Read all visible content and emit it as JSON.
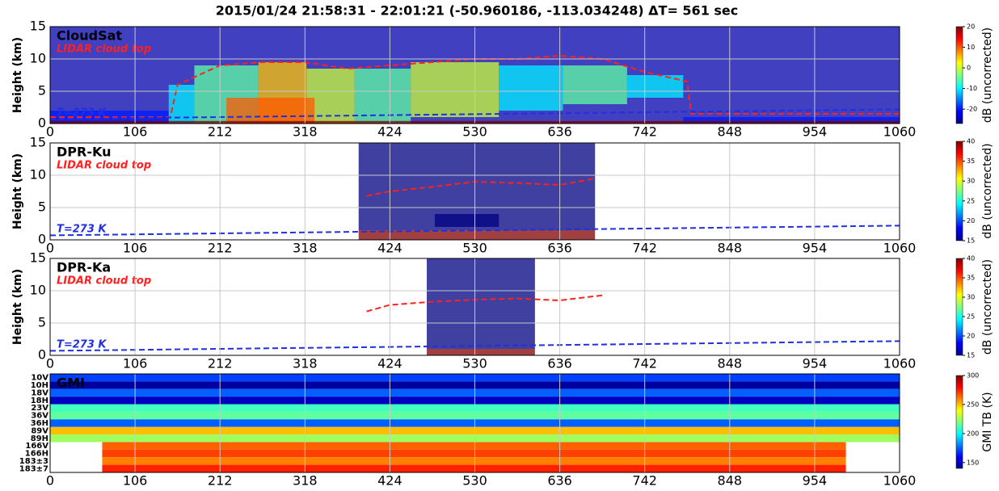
{
  "chart_data": [
    {
      "type": "heatmap",
      "title": "2015/01/24 21:58:31 - 22:01:21   (-50.960186, -113.034248)  ΔT= 561 sec",
      "label": "CloudSat",
      "ylabel": "Height (km)",
      "xlim": [
        0,
        1060
      ],
      "xticks": [
        0,
        106,
        212,
        318,
        424,
        530,
        636,
        742,
        848,
        954,
        1060
      ],
      "ylim": [
        0,
        15
      ],
      "yticks": [
        0,
        5,
        10,
        15
      ],
      "cells": [
        {
          "x": [
            0,
            1060
          ],
          "y": [
            0,
            15
          ],
          "dB": -25
        },
        {
          "x": [
            0,
            148
          ],
          "y": [
            0,
            2
          ],
          "dB": -20
        },
        {
          "x": [
            148,
            180
          ],
          "y": [
            0,
            6
          ],
          "dB": -10
        },
        {
          "x": [
            180,
            260
          ],
          "y": [
            0,
            9
          ],
          "dB": -5
        },
        {
          "x": [
            260,
            320
          ],
          "y": [
            0,
            9.5
          ],
          "dB": 5
        },
        {
          "x": [
            320,
            380
          ],
          "y": [
            0,
            8.5
          ],
          "dB": 0
        },
        {
          "x": [
            380,
            450
          ],
          "y": [
            0,
            8.5
          ],
          "dB": -5
        },
        {
          "x": [
            450,
            560
          ],
          "y": [
            1,
            9.5
          ],
          "dB": 0
        },
        {
          "x": [
            560,
            640
          ],
          "y": [
            2,
            9
          ],
          "dB": -10
        },
        {
          "x": [
            640,
            720
          ],
          "y": [
            3,
            9
          ],
          "dB": -5
        },
        {
          "x": [
            720,
            790
          ],
          "y": [
            4,
            7.5
          ],
          "dB": -10
        },
        {
          "x": [
            220,
            330
          ],
          "y": [
            0,
            4
          ],
          "dB": 10
        },
        {
          "x": [
            790,
            1060
          ],
          "y": [
            0,
            1
          ],
          "dB": -20
        },
        {
          "x": [
            0,
            1060
          ],
          "y": [
            0,
            0.4
          ],
          "dB": 20
        }
      ],
      "series": [
        {
          "name": "LIDAR cloud top",
          "color": "#ff2020",
          "x": [
            0,
            53,
            106,
            150,
            159,
            212,
            265,
            318,
            371,
            424,
            477,
            530,
            583,
            636,
            689,
            742,
            795,
            800,
            848,
            954,
            1060
          ],
          "values": [
            1,
            1,
            1,
            1,
            6,
            9,
            9.5,
            9.5,
            8.5,
            9,
            9.5,
            10,
            10,
            10.5,
            10,
            8,
            6.5,
            1.5,
            1.5,
            1.5,
            1.5
          ]
        },
        {
          "name": "T=273 K",
          "color": "#2030e0",
          "x": [
            0,
            106,
            212,
            318,
            424,
            530,
            636,
            742,
            848,
            954,
            1060
          ],
          "values": [
            0.7,
            0.85,
            1,
            1.15,
            1.3,
            1.45,
            1.6,
            1.75,
            1.9,
            2.05,
            2.2
          ]
        }
      ],
      "colorbar": {
        "label": "dB (uncorrected)",
        "lim": [
          -27,
          20
        ],
        "ticks": [
          -20,
          -10,
          0,
          10,
          20
        ]
      }
    },
    {
      "type": "heatmap",
      "label": "DPR-Ku",
      "ylabel": "Height (km)",
      "xlim": [
        0,
        1060
      ],
      "xticks": [
        0,
        106,
        212,
        318,
        424,
        530,
        636,
        742,
        848,
        954,
        1060
      ],
      "ylim": [
        0,
        15
      ],
      "yticks": [
        0,
        5,
        10,
        15
      ],
      "cells": [
        {
          "x": [
            385,
            680
          ],
          "y": [
            1.5,
            15
          ],
          "dB": 15
        },
        {
          "x": [
            480,
            560
          ],
          "y": [
            2,
            4
          ],
          "dB": 15
        },
        {
          "x": [
            385,
            680
          ],
          "y": [
            0,
            1.5
          ],
          "dB": 40
        }
      ],
      "series": [
        {
          "name": "LIDAR cloud top",
          "color": "#ff2020",
          "x": [
            395,
            424,
            477,
            530,
            583,
            636,
            680
          ],
          "values": [
            6.8,
            7.5,
            8.2,
            9,
            8.8,
            8.5,
            9.5
          ]
        },
        {
          "name": "T=273 K",
          "color": "#2030e0",
          "x": [
            0,
            106,
            212,
            318,
            424,
            530,
            636,
            742,
            848,
            954,
            1060
          ],
          "values": [
            0.7,
            0.85,
            1,
            1.15,
            1.3,
            1.45,
            1.6,
            1.75,
            1.9,
            2.05,
            2.2
          ]
        }
      ],
      "colorbar": {
        "label": "dB (uncorrected)",
        "lim": [
          15,
          40
        ],
        "ticks": [
          15,
          20,
          25,
          30,
          35,
          40
        ]
      }
    },
    {
      "type": "heatmap",
      "label": "DPR-Ka",
      "ylabel": "Height (km)",
      "xlim": [
        0,
        1060
      ],
      "xticks": [
        0,
        106,
        212,
        318,
        424,
        530,
        636,
        742,
        848,
        954,
        1060
      ],
      "ylim": [
        0,
        15
      ],
      "yticks": [
        0,
        5,
        10,
        15
      ],
      "cells": [
        {
          "x": [
            470,
            605
          ],
          "y": [
            1,
            15
          ],
          "dB": 15
        },
        {
          "x": [
            470,
            605
          ],
          "y": [
            0,
            1
          ],
          "dB": 40
        }
      ],
      "series": [
        {
          "name": "LIDAR cloud top",
          "color": "#ff2020",
          "x": [
            395,
            424,
            477,
            530,
            583,
            636,
            690
          ],
          "values": [
            6.8,
            7.8,
            8.3,
            8.6,
            8.8,
            8.5,
            9.3
          ]
        },
        {
          "name": "T=273 K",
          "color": "#2030e0",
          "x": [
            0,
            106,
            212,
            318,
            424,
            530,
            636,
            742,
            848,
            954,
            1060
          ],
          "values": [
            0.7,
            0.85,
            1,
            1.15,
            1.3,
            1.45,
            1.6,
            1.75,
            1.9,
            2.05,
            2.2
          ]
        }
      ],
      "colorbar": {
        "label": "dB (uncorrected)",
        "lim": [
          15,
          40
        ],
        "ticks": [
          15,
          20,
          25,
          30,
          35,
          40
        ]
      }
    },
    {
      "type": "channels",
      "label": "GMI",
      "xlim": [
        0,
        1060
      ],
      "xticks": [
        0,
        106,
        212,
        318,
        424,
        530,
        636,
        742,
        848,
        954,
        1060
      ],
      "rows": [
        {
          "channel": "10V",
          "x": [
            0,
            1060
          ],
          "tb": 170
        },
        {
          "channel": "10H",
          "x": [
            0,
            1060
          ],
          "tb": 145
        },
        {
          "channel": "18V",
          "x": [
            0,
            1060
          ],
          "tb": 175
        },
        {
          "channel": "18H",
          "x": [
            0,
            1060
          ],
          "tb": 150
        },
        {
          "channel": "23V",
          "x": [
            0,
            1060
          ],
          "tb": 210
        },
        {
          "channel": "36V",
          "x": [
            0,
            1060
          ],
          "tb": 215
        },
        {
          "channel": "36H",
          "x": [
            0,
            1060
          ],
          "tb": 175
        },
        {
          "channel": "89V",
          "x": [
            0,
            1060
          ],
          "tb": 250
        },
        {
          "channel": "89H",
          "x": [
            0,
            1060
          ],
          "tb": 225
        },
        {
          "channel": "166V",
          "x": [
            65,
            993
          ],
          "tb": 265
        },
        {
          "channel": "166H",
          "x": [
            65,
            993
          ],
          "tb": 270
        },
        {
          "channel": "183±3",
          "x": [
            65,
            993
          ],
          "tb": 260
        },
        {
          "channel": "183±7",
          "x": [
            65,
            993
          ],
          "tb": 275
        }
      ],
      "colorbar": {
        "label": "GMI TB (K)",
        "lim": [
          140,
          300
        ],
        "ticks": [
          150,
          200,
          250,
          300
        ]
      }
    }
  ]
}
